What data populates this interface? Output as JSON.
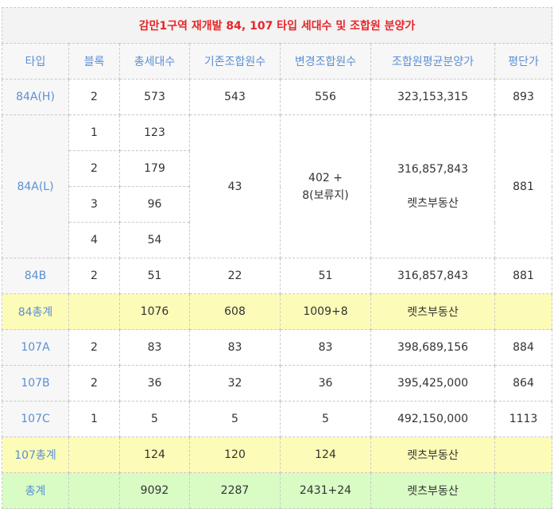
{
  "title": "감만1구역 재개발 84, 107 타입 세대수 및 조합원 분양가",
  "headers": [
    "타입",
    "블록",
    "총세대수",
    "기존조합원수",
    "변경조합원수",
    "조합원평균분양가",
    "평단가"
  ],
  "row_84AH": {
    "type": "84A(H)",
    "block": "2",
    "units": "573",
    "orig": "543",
    "changed": "556",
    "price": "323,153,315",
    "ppp": "893"
  },
  "row_84AL": {
    "type": "84A(L)",
    "sub": [
      {
        "block": "1",
        "units": "123"
      },
      {
        "block": "2",
        "units": "179"
      },
      {
        "block": "3",
        "units": "96"
      },
      {
        "block": "4",
        "units": "54"
      }
    ],
    "orig": "43",
    "changed_line1": "402 +",
    "changed_line2": "8(보류지)",
    "price": "316,857,843",
    "source": "렛츠부동산",
    "ppp": "881"
  },
  "row_84B": {
    "type": "84B",
    "block": "2",
    "units": "51",
    "orig": "22",
    "changed": "51",
    "price": "316,857,843",
    "ppp": "881"
  },
  "total_84": {
    "type": "84총계",
    "units": "1076",
    "orig": "608",
    "changed": "1009+8",
    "source": "렛츠부동산"
  },
  "row_107A": {
    "type": "107A",
    "block": "2",
    "units": "83",
    "orig": "83",
    "changed": "83",
    "price": "398,689,156",
    "ppp": "884"
  },
  "row_107B": {
    "type": "107B",
    "block": "2",
    "units": "36",
    "orig": "32",
    "changed": "36",
    "price": "395,425,000",
    "ppp": "864"
  },
  "row_107C": {
    "type": "107C",
    "block": "1",
    "units": "5",
    "orig": "5",
    "changed": "5",
    "price": "492,150,000",
    "ppp": "1113"
  },
  "total_107": {
    "type": "107총계",
    "units": "124",
    "orig": "120",
    "changed": "124",
    "source": "렛츠부동산"
  },
  "total_all": {
    "type": "총계",
    "units": "9092",
    "orig": "2287",
    "changed": "2431+24",
    "source": "렛츠부동산"
  },
  "colors": {
    "title": "#e8262a",
    "type_text": "#5b8fd6",
    "yellow": "#fcfcb8",
    "green": "#d8fcc4",
    "header_bg": "#f7f7f7"
  }
}
